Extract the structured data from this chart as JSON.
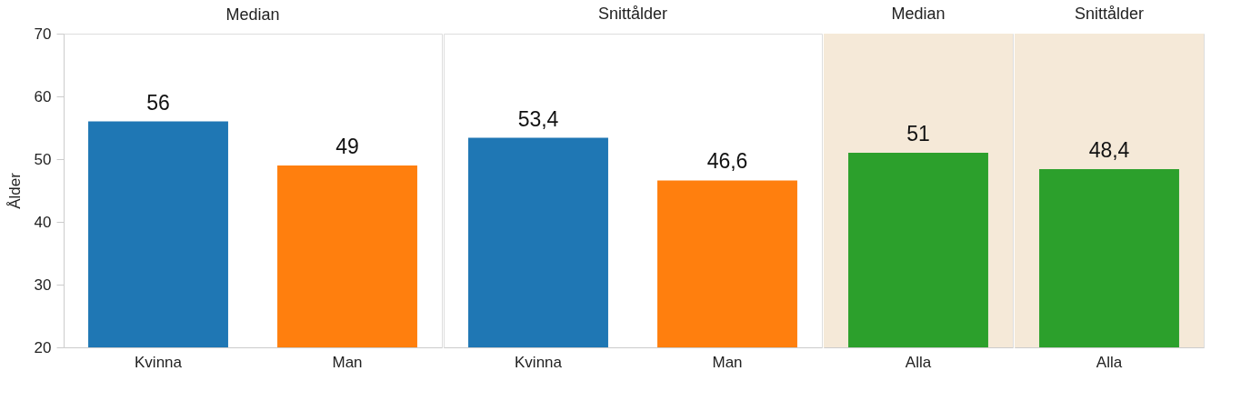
{
  "chart_data": [
    {
      "type": "bar",
      "title": "Median",
      "ylabel": "Ålder",
      "categories": [
        "Kvinna",
        "Man"
      ],
      "values": [
        56,
        49
      ],
      "colors": [
        "#1f77b4",
        "#ff7f0e"
      ],
      "data_labels": true,
      "ylim": [
        20,
        70
      ],
      "yticks": [
        20,
        30,
        40,
        50,
        60,
        70
      ]
    },
    {
      "type": "bar",
      "title": "Snittålder",
      "categories": [
        "Kvinna",
        "Man"
      ],
      "values": [
        53.4,
        46.6
      ],
      "colors": [
        "#1f77b4",
        "#ff7f0e"
      ],
      "value_labels": [
        "53,4",
        "46,6"
      ],
      "ylim": [
        20,
        70
      ],
      "tick_labels": "x"
    },
    {
      "type": "bar",
      "title": "Median",
      "categories": [
        "Alla"
      ],
      "values": [
        51
      ],
      "colors": [
        "#2ca02c"
      ],
      "data_labels": true,
      "ylim": [
        20,
        70
      ],
      "tick_labels": "x",
      "bands": [
        {
          "axis": "y",
          "from": 20,
          "to": 70,
          "color": "#f5e9d8"
        }
      ]
    },
    {
      "type": "bar",
      "title": "Snittålder",
      "categories": [
        "Alla"
      ],
      "values": [
        48.4
      ],
      "colors": [
        "#2ca02c"
      ],
      "value_labels": [
        "48,4"
      ],
      "ylim": [
        20,
        70
      ],
      "tick_labels": "x",
      "bands": [
        {
          "axis": "y",
          "from": 20,
          "to": 70,
          "color": "#f5e9d8"
        }
      ]
    }
  ]
}
